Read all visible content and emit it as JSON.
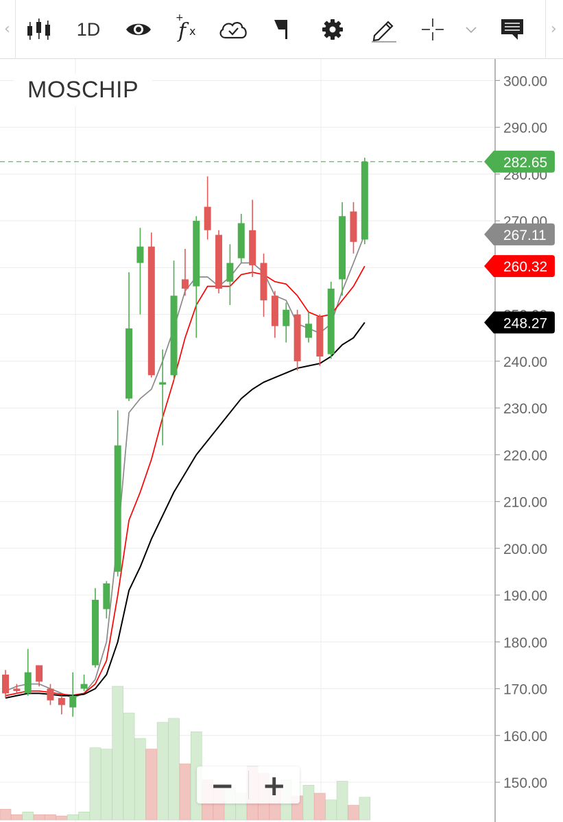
{
  "toolbar": {
    "interval": "1D",
    "icons": [
      "chevron-left-icon",
      "candlestick-icon",
      "eye-icon",
      "function-icon",
      "cloud-icon",
      "flag-icon",
      "gear-icon",
      "pencil-icon",
      "crosshair-icon",
      "chevron-down-icon",
      "comment-icon",
      "chevron-right-icon"
    ],
    "icon_color": "#222222"
  },
  "chart": {
    "symbol": "MOSCHIP",
    "zoom_out_label": "−",
    "zoom_in_label": "+"
  },
  "chart_data": {
    "type": "candlestick",
    "title": "MOSCHIP",
    "interval": "1D",
    "y_axis": {
      "ticks": [
        300,
        290,
        280,
        270,
        260,
        250,
        240,
        230,
        220,
        210,
        200,
        190,
        180,
        170,
        160,
        150
      ],
      "tick_labels": [
        "300.00",
        "290.00",
        "280.00",
        "270.00",
        "260.00",
        "250.00",
        "240.00",
        "230.00",
        "220.00",
        "210.00",
        "200.00",
        "190.00",
        "180.00",
        "170.00",
        "160.00",
        "150.00"
      ],
      "range": [
        141.5,
        304.6
      ],
      "position": "right"
    },
    "grid": true,
    "colors": {
      "up": "#4caf50",
      "down": "#e05a5a",
      "volume_up": "#d5ecd2",
      "volume_down": "#f2c4c0",
      "ma_short": "#8a8a8a",
      "ma_mid": "#ff0000",
      "ma_long": "#000000",
      "last_price_line": "#4caf50"
    },
    "candles": [
      {
        "o": 173,
        "h": 174,
        "l": 168,
        "c": 169
      },
      {
        "o": 170,
        "h": 171,
        "l": 169,
        "c": 169.5
      },
      {
        "o": 169,
        "h": 178.5,
        "l": 168.5,
        "c": 173.5
      },
      {
        "o": 175,
        "h": 175,
        "l": 170.5,
        "c": 171.5
      },
      {
        "o": 170,
        "h": 171,
        "l": 166.5,
        "c": 167.5
      },
      {
        "o": 168,
        "h": 168.5,
        "l": 164.5,
        "c": 166.5
      },
      {
        "o": 166,
        "h": 173.5,
        "l": 164,
        "c": 168.5
      },
      {
        "o": 170,
        "h": 173,
        "l": 169.5,
        "c": 171
      },
      {
        "o": 175,
        "h": 191.5,
        "l": 174.5,
        "c": 189
      },
      {
        "o": 187,
        "h": 193,
        "l": 185,
        "c": 192.5
      },
      {
        "o": 195,
        "h": 229.5,
        "l": 194,
        "c": 222
      },
      {
        "o": 232,
        "h": 259,
        "l": 231.5,
        "c": 247
      },
      {
        "o": 261,
        "h": 268.5,
        "l": 250,
        "c": 264.5
      },
      {
        "o": 264.5,
        "h": 267.5,
        "l": 236.5,
        "c": 237
      },
      {
        "o": 235,
        "h": 242.5,
        "l": 222,
        "c": 235.5
      },
      {
        "o": 237,
        "h": 261.5,
        "l": 236,
        "c": 254
      },
      {
        "o": 257.5,
        "h": 264,
        "l": 254,
        "c": 255.5
      },
      {
        "o": 256,
        "h": 271,
        "l": 245,
        "c": 270
      },
      {
        "o": 273,
        "h": 279.5,
        "l": 266,
        "c": 268
      },
      {
        "o": 267,
        "h": 268,
        "l": 254.5,
        "c": 255.5
      },
      {
        "o": 257,
        "h": 265,
        "l": 252,
        "c": 261
      },
      {
        "o": 262,
        "h": 271.5,
        "l": 261,
        "c": 269.5
      },
      {
        "o": 268,
        "h": 274.5,
        "l": 258,
        "c": 260.5
      },
      {
        "o": 261,
        "h": 263,
        "l": 249.5,
        "c": 253
      },
      {
        "o": 254,
        "h": 255,
        "l": 245,
        "c": 247.5
      },
      {
        "o": 247.5,
        "h": 252.5,
        "l": 244,
        "c": 251
      },
      {
        "o": 250,
        "h": 251,
        "l": 238,
        "c": 240
      },
      {
        "o": 245,
        "h": 250.5,
        "l": 244,
        "c": 248
      },
      {
        "o": 249.5,
        "h": 250,
        "l": 239,
        "c": 241
      },
      {
        "o": 241.5,
        "h": 257,
        "l": 240.5,
        "c": 255.5
      },
      {
        "o": 257.5,
        "h": 274,
        "l": 254,
        "c": 271
      },
      {
        "o": 272,
        "h": 274,
        "l": 263,
        "c": 265.5
      },
      {
        "o": 266,
        "h": 283.5,
        "l": 265,
        "c": 282.65
      }
    ],
    "volume_relative": [
      0.08,
      0.04,
      0.06,
      0.04,
      0.04,
      0.03,
      0.04,
      0.06,
      0.54,
      0.53,
      1.0,
      0.8,
      0.61,
      0.53,
      0.73,
      0.76,
      0.42,
      0.66,
      0.3,
      0.25,
      0.24,
      0.2,
      0.4,
      0.35,
      0.26,
      0.3,
      0.18,
      0.26,
      0.2,
      0.15,
      0.29,
      0.11,
      0.17
    ],
    "moving_averages": [
      {
        "color": "#8a8a8a",
        "last_value": 267.11,
        "values": [
          169.5,
          170.5,
          171,
          171,
          170,
          169,
          168,
          169,
          172,
          180,
          202,
          229,
          232,
          234,
          240,
          247,
          255,
          258,
          258,
          256,
          258,
          261,
          261,
          259,
          254,
          253,
          248,
          247,
          246,
          248,
          255,
          261,
          267.11
        ]
      },
      {
        "color": "#ff0000",
        "last_value": 260.32,
        "values": [
          168.5,
          169,
          169.5,
          169.5,
          169.2,
          168.8,
          168.6,
          169,
          171,
          176,
          190,
          206,
          212,
          219,
          228,
          236,
          245,
          252,
          256,
          256,
          256,
          258.5,
          259,
          258.5,
          257,
          256.5,
          254,
          250.5,
          249.5,
          250,
          253,
          256,
          260.32
        ]
      },
      {
        "color": "#000000",
        "last_value": 248.27,
        "values": [
          168,
          168.5,
          169,
          169,
          168.8,
          168.5,
          168.5,
          168.8,
          170,
          173,
          180,
          191,
          196,
          202,
          207,
          212,
          216,
          220,
          223,
          226,
          229,
          232,
          234,
          235.5,
          236.5,
          237.5,
          238.5,
          239,
          239.5,
          241,
          243.5,
          245,
          248.27
        ]
      }
    ],
    "labels": [
      {
        "text": "282.65",
        "value": 282.65,
        "bg": "#4caf50",
        "fg": "#ffffff"
      },
      {
        "text": "267.11",
        "value": 267.11,
        "bg": "#8a8a8a",
        "fg": "#ffffff"
      },
      {
        "text": "260.32",
        "value": 260.32,
        "bg": "#ff0000",
        "fg": "#ffffff"
      },
      {
        "text": "248.27",
        "value": 248.27,
        "bg": "#000000",
        "fg": "#ffffff"
      }
    ],
    "last_price": 282.65
  }
}
